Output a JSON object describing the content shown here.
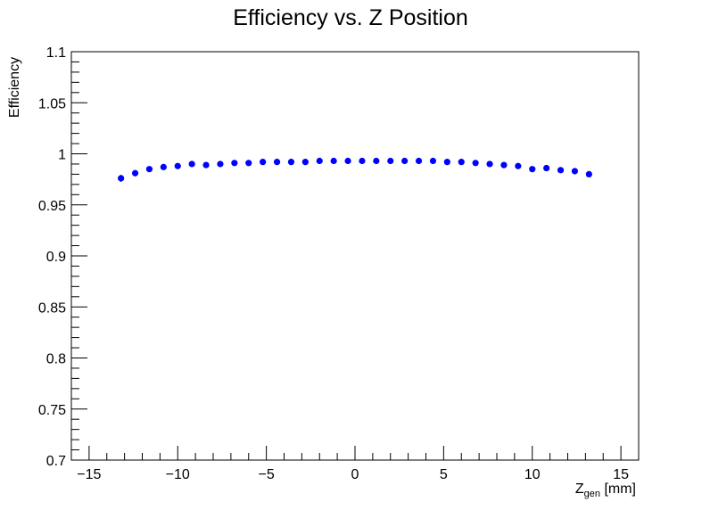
{
  "chart_data": {
    "type": "scatter",
    "title": "Efficiency vs. Z Position",
    "xlabel": {
      "main": "Z",
      "sub": "gen",
      "unit": " [mm]"
    },
    "ylabel": "Efficiency",
    "xlim": [
      -16,
      16
    ],
    "ylim": [
      0.7,
      1.1
    ],
    "x_ticks": [
      -15,
      -10,
      -5,
      0,
      5,
      10,
      15
    ],
    "x_tick_labels": [
      "−15",
      "−10",
      "−5",
      "0",
      "5",
      "10",
      "15"
    ],
    "y_ticks": [
      0.7,
      0.75,
      0.8,
      0.85,
      0.9,
      0.95,
      1.0,
      1.05,
      1.1
    ],
    "y_tick_labels": [
      "0.7",
      "0.75",
      "0.8",
      "0.85",
      "0.9",
      "0.95",
      "1",
      "1.05",
      "1.1"
    ],
    "grid": false,
    "marker_color": "#0000ff",
    "x": [
      -13.2,
      -12.4,
      -11.6,
      -10.8,
      -10.0,
      -9.2,
      -8.4,
      -7.6,
      -6.8,
      -6.0,
      -5.2,
      -4.4,
      -3.6,
      -2.8,
      -2.0,
      -1.2,
      -0.4,
      0.4,
      1.2,
      2.0,
      2.8,
      3.6,
      4.4,
      5.2,
      6.0,
      6.8,
      7.6,
      8.4,
      9.2,
      10.0,
      10.8,
      11.6,
      12.4,
      13.2
    ],
    "y": [
      0.976,
      0.981,
      0.985,
      0.987,
      0.988,
      0.99,
      0.989,
      0.99,
      0.991,
      0.991,
      0.992,
      0.992,
      0.992,
      0.992,
      0.993,
      0.993,
      0.993,
      0.993,
      0.993,
      0.993,
      0.993,
      0.993,
      0.993,
      0.992,
      0.992,
      0.991,
      0.99,
      0.989,
      0.988,
      0.985,
      0.986,
      0.984,
      0.983,
      0.98
    ],
    "y_err": [
      0.0035,
      0.002,
      0.002,
      0.0015,
      0.0015,
      0.0015,
      0.0015,
      0.0015,
      0.0012,
      0.0012,
      0.0012,
      0.0012,
      0.0012,
      0.0012,
      0.0012,
      0.0012,
      0.0012,
      0.0012,
      0.0012,
      0.0012,
      0.0012,
      0.0012,
      0.0012,
      0.0012,
      0.0012,
      0.0012,
      0.0015,
      0.0015,
      0.0015,
      0.0015,
      0.0015,
      0.002,
      0.002,
      0.003
    ]
  }
}
